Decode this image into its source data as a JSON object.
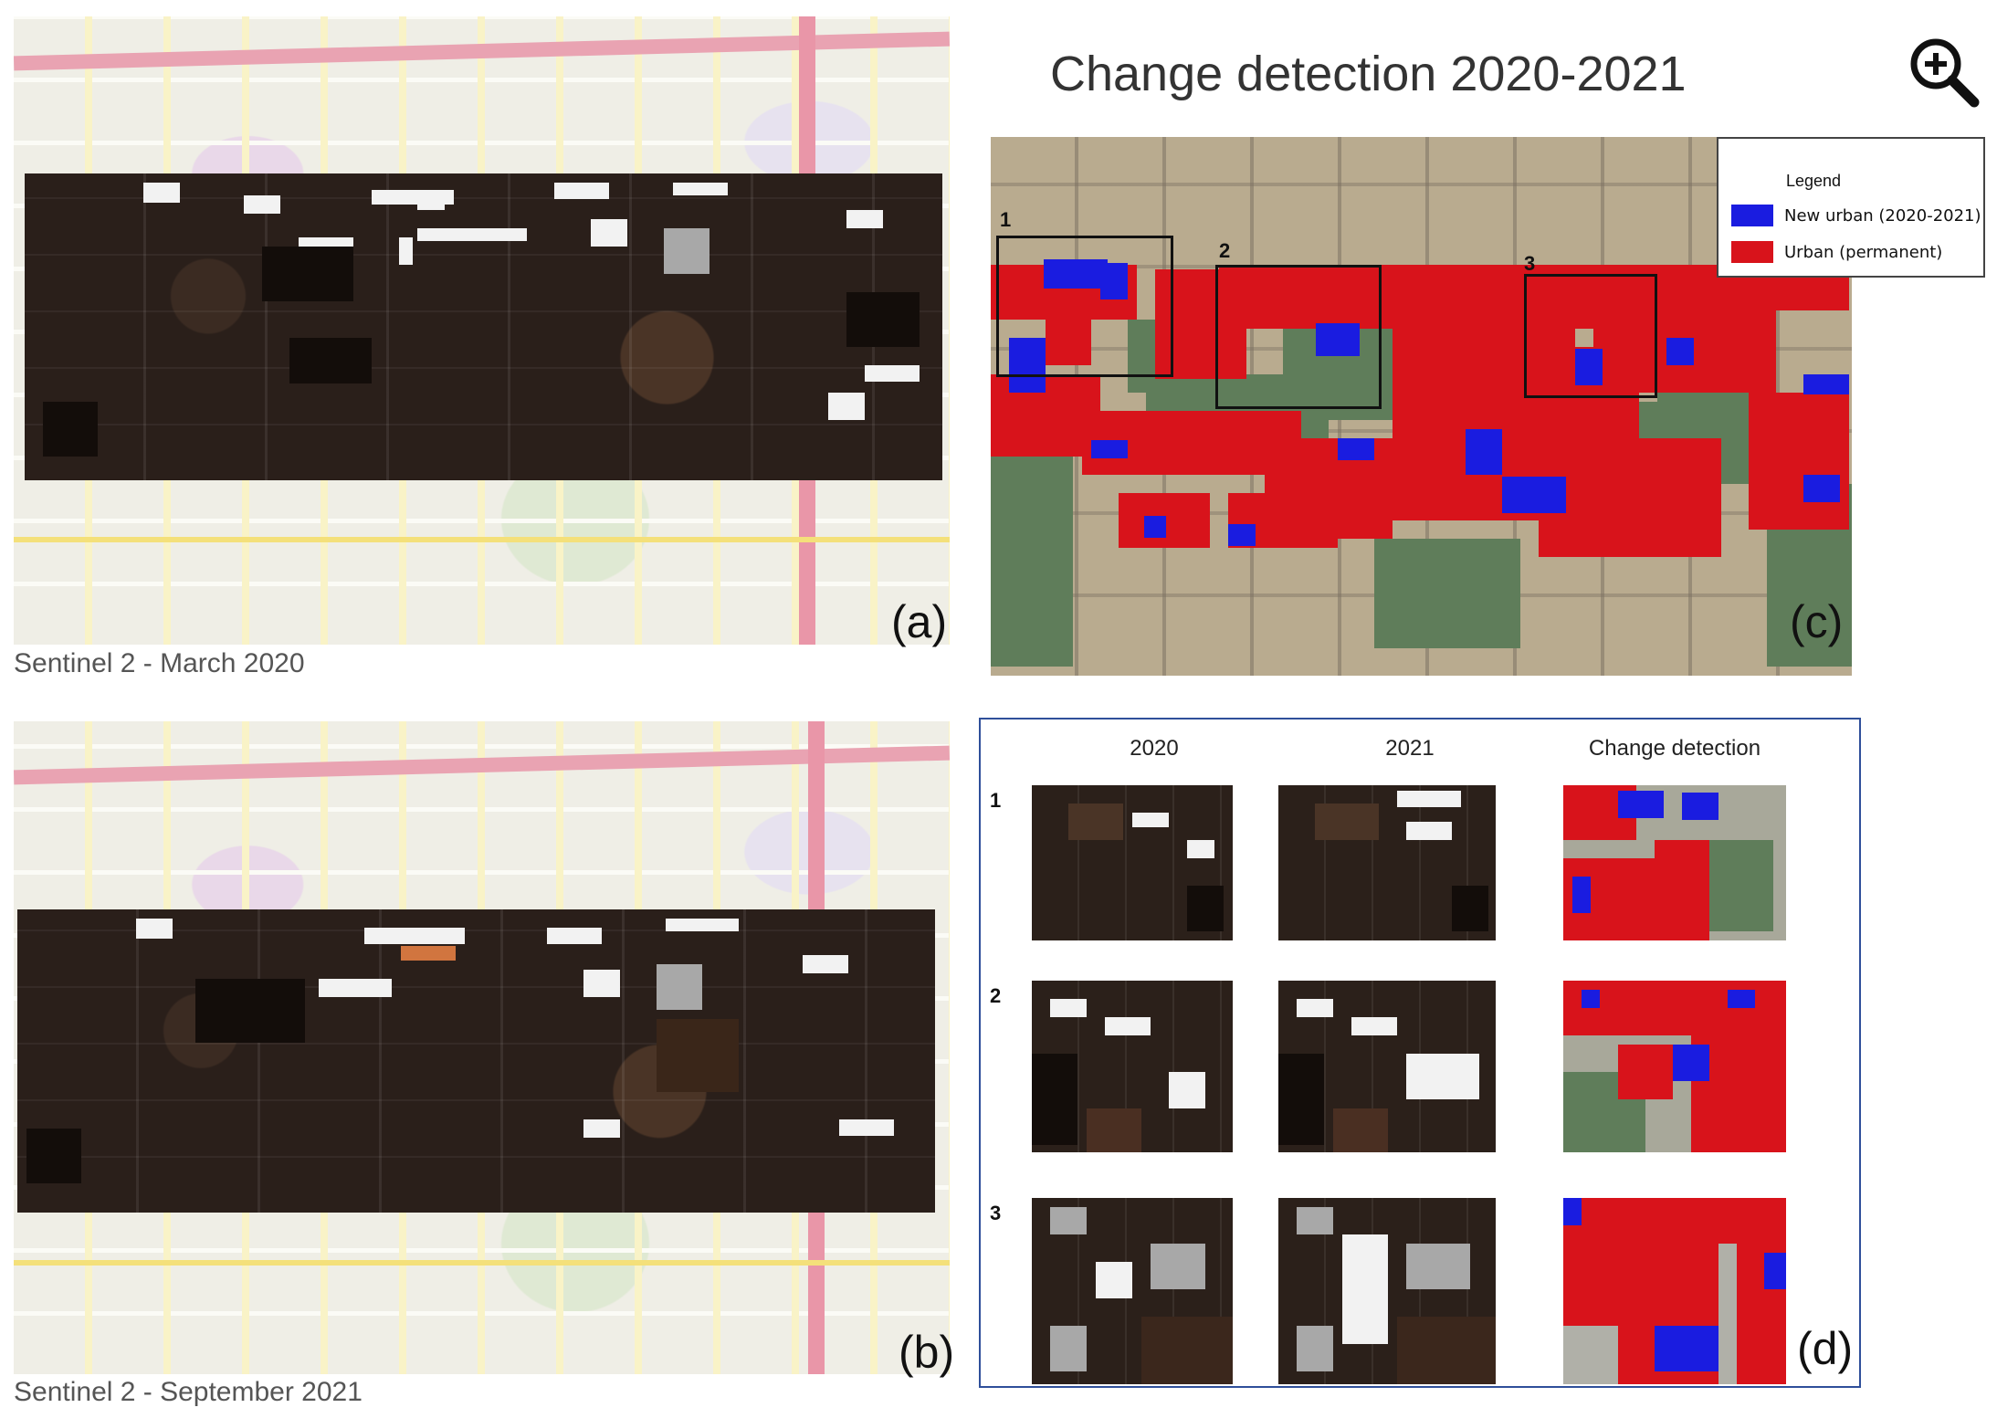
{
  "panels": {
    "a": {
      "letter": "(a)",
      "caption": "Sentinel 2 - March 2020"
    },
    "b": {
      "letter": "(b)",
      "caption": "Sentinel 2 - September 2021"
    },
    "c": {
      "title": "Change detection 2020-2021",
      "letter": "(c)",
      "boxes": [
        "1",
        "2",
        "3"
      ],
      "legend": {
        "title": "Legend",
        "items": [
          {
            "label": "New urban (2020-2021)",
            "color": "#1a1ce0"
          },
          {
            "label": "Urban (permanent)",
            "color": "#d8131b"
          }
        ]
      }
    },
    "d": {
      "letter": "(d)",
      "columns": [
        "2020",
        "2021",
        "Change detection"
      ],
      "rows": [
        "1",
        "2",
        "3"
      ]
    }
  },
  "zoom_icon": "zoom-in-magnifier-icon"
}
